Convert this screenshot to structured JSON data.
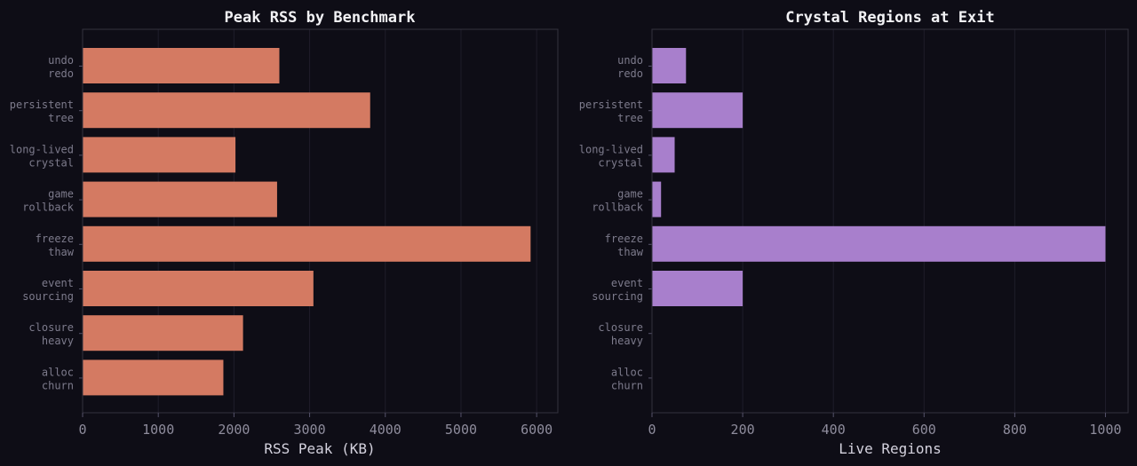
{
  "chart_data": [
    {
      "type": "bar",
      "orientation": "horizontal",
      "title": "Peak RSS by Benchmark",
      "xlabel": "RSS Peak (KB)",
      "ylabel": "",
      "categories": [
        [
          "undo",
          "redo"
        ],
        [
          "persistent",
          "tree"
        ],
        [
          "long-lived",
          "crystal"
        ],
        [
          "game",
          "rollback"
        ],
        [
          "freeze",
          "thaw"
        ],
        [
          "event",
          "sourcing"
        ],
        [
          "closure",
          "heavy"
        ],
        [
          "alloc",
          "churn"
        ]
      ],
      "values": [
        2600,
        3800,
        2020,
        2570,
        5920,
        3050,
        2120,
        1860
      ],
      "xlim": [
        0,
        6280
      ],
      "xticks": [
        0,
        1000,
        2000,
        3000,
        4000,
        5000,
        6000
      ],
      "grid": true,
      "color": "#d47a62"
    },
    {
      "type": "bar",
      "orientation": "horizontal",
      "title": "Crystal Regions at Exit",
      "xlabel": "Live Regions",
      "ylabel": "",
      "categories": [
        [
          "undo",
          "redo"
        ],
        [
          "persistent",
          "tree"
        ],
        [
          "long-lived",
          "crystal"
        ],
        [
          "game",
          "rollback"
        ],
        [
          "freeze",
          "thaw"
        ],
        [
          "event",
          "sourcing"
        ],
        [
          "closure",
          "heavy"
        ],
        [
          "alloc",
          "churn"
        ]
      ],
      "values": [
        75,
        200,
        50,
        20,
        1000,
        200,
        0,
        0
      ],
      "xlim": [
        0,
        1050
      ],
      "xticks": [
        0,
        200,
        400,
        600,
        800,
        1000
      ],
      "grid": true,
      "color": "#a87fcc"
    }
  ],
  "colors": {
    "background": "#0e0d16",
    "frame": "#34323f",
    "grid": "#1f1d2a"
  }
}
